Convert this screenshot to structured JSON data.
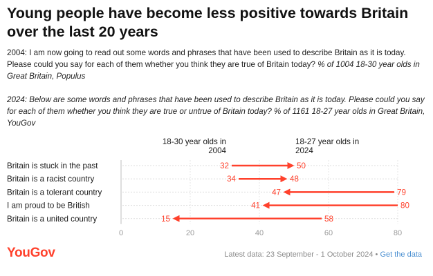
{
  "header": {
    "title": "Young people have become less positive towards Britain over the last 20 years",
    "note_2004_plain": "2004: I am now going to read out some words and phrases that have been used to describe Britain as it is today. Please could you say for each of them whether you think they are true of Britain today? ",
    "note_2004_italic": "% of 1004 18-30 year olds in Great Britain, Populus",
    "note_2024": "2024: Below are some words and phrases that have been used to describe Britain as it is today. Please could you say for each of them whether you think they are true or untrue of Britain today? % of 1161 18-27 year olds in Great Britain, YouGov"
  },
  "chart_data": {
    "type": "dumbbell-arrow",
    "series": [
      {
        "name": "18-30 year olds in 2004",
        "label_lines": [
          "18-30 year olds in",
          "2004"
        ],
        "color": "#ff412c"
      },
      {
        "name": "18-27 year olds in 2024",
        "label_lines": [
          "18-27 year olds in",
          "2024"
        ],
        "color": "#ff412c"
      }
    ],
    "categories": [
      "Britain is stuck in the past",
      "Britain is a racist country",
      "Britain is a tolerant country",
      "I am proud to be British",
      "Britain is a united country"
    ],
    "values_2004": [
      32,
      34,
      79,
      80,
      58
    ],
    "values_2024": [
      50,
      48,
      47,
      41,
      15
    ],
    "x_ticks": [
      0,
      20,
      40,
      60,
      80
    ],
    "xlim": [
      0,
      80
    ],
    "accent_color": "#ff412c"
  },
  "footer": {
    "logo": "YouGov",
    "latest_data": "Latest data: 23 September - 1 October 2024",
    "separator": " • ",
    "get_data": "Get the data"
  }
}
